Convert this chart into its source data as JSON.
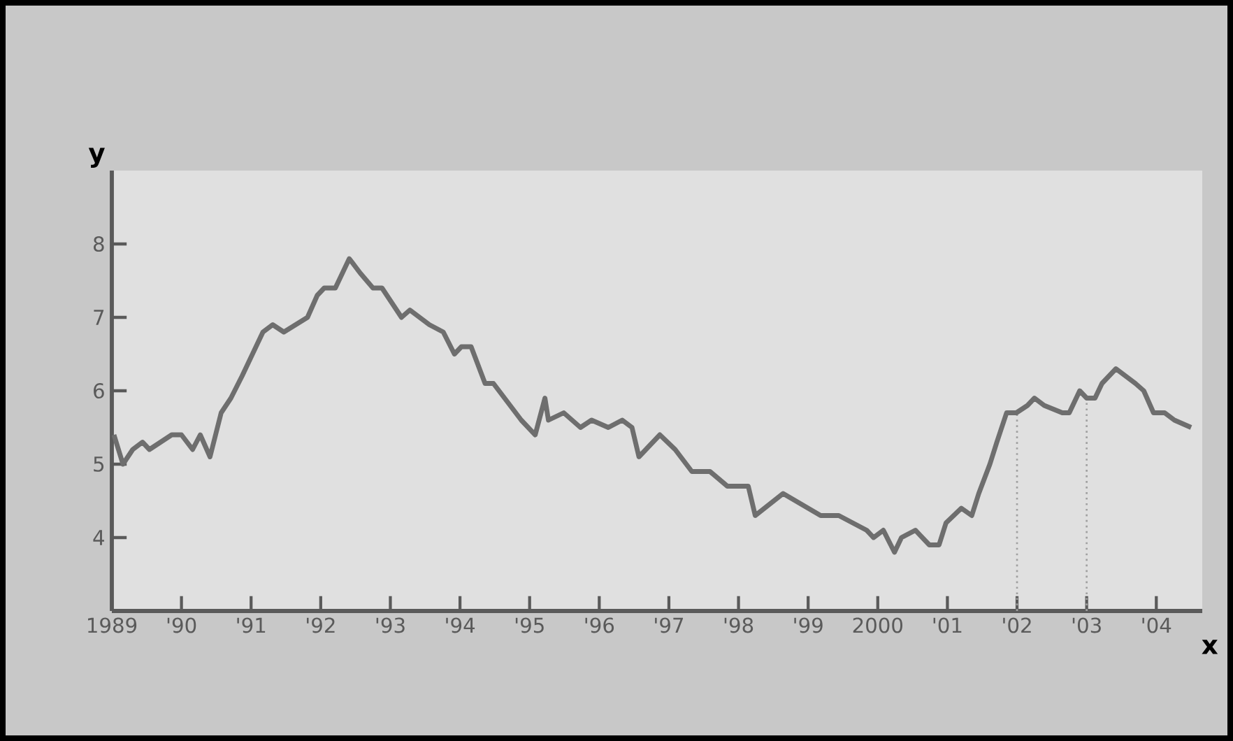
{
  "chart_data": {
    "type": "line",
    "xlabel": "x",
    "ylabel": "y",
    "xlim": [
      1989,
      2004.66
    ],
    "ylim": [
      3,
      9
    ],
    "xticks": [
      1989,
      {
        "value": 1990,
        "label": "'90"
      },
      {
        "value": 1991,
        "label": "'91"
      },
      {
        "value": 1992,
        "label": "'92"
      },
      {
        "value": 1993,
        "label": "'93"
      },
      {
        "value": 1994,
        "label": "'94"
      },
      {
        "value": 1995,
        "label": "'95"
      },
      {
        "value": 1996,
        "label": "'96"
      },
      {
        "value": 1997,
        "label": "'97"
      },
      {
        "value": 1998,
        "label": "'98"
      },
      {
        "value": 1999,
        "label": "'99"
      },
      2000,
      {
        "value": 2001,
        "label": "'01"
      },
      {
        "value": 2002,
        "label": "'02"
      },
      {
        "value": 2003,
        "label": "'03"
      },
      {
        "value": 2004,
        "label": "'04"
      }
    ],
    "yticks": [
      4,
      5,
      6,
      7,
      8
    ],
    "ref_lines": [
      {
        "axis": "x",
        "value": 2002,
        "line_style": "dotted",
        "color": "#a0a0a0"
      },
      {
        "axis": "x",
        "value": 2003,
        "line_style": "dotted",
        "color": "#a0a0a0"
      }
    ],
    "series": [
      {
        "color": "#6e6e6e",
        "x": [
          1989.03,
          1989.16,
          1989.3,
          1989.44,
          1989.54,
          1989.86,
          1990.0,
          1990.16,
          1990.27,
          1990.41,
          1990.57,
          1990.71,
          1990.87,
          1991.07,
          1991.17,
          1991.31,
          1991.47,
          1991.81,
          1991.95,
          1992.05,
          1992.21,
          1992.41,
          1992.57,
          1992.75,
          1992.88,
          1993.16,
          1993.28,
          1993.56,
          1993.76,
          1993.92,
          1994.02,
          1994.16,
          1994.36,
          1994.48,
          1994.88,
          1995.08,
          1995.22,
          1995.27,
          1995.49,
          1995.73,
          1995.89,
          1996.13,
          1996.33,
          1996.47,
          1996.57,
          1996.87,
          1997.09,
          1997.33,
          1997.59,
          1997.84,
          1998.0,
          1998.14,
          1998.24,
          1998.64,
          1999.0,
          1999.18,
          1999.44,
          1999.84,
          1999.94,
          2000.08,
          2000.24,
          2000.34,
          2000.54,
          2000.74,
          2000.88,
          2000.98,
          2001.2,
          2001.35,
          2001.45,
          2001.61,
          2001.71,
          2001.85,
          2001.99,
          2002.15,
          2002.25,
          2002.39,
          2002.65,
          2002.75,
          2002.9,
          2003.0,
          2003.12,
          2003.22,
          2003.42,
          2003.7,
          2003.82,
          2003.96,
          2004.12,
          2004.26,
          2004.5
        ],
        "values": [
          5.4,
          5.0,
          5.2,
          5.3,
          5.2,
          5.4,
          5.4,
          5.2,
          5.4,
          5.1,
          5.7,
          5.9,
          6.2,
          6.6,
          6.8,
          6.9,
          6.8,
          7.0,
          7.3,
          7.4,
          7.4,
          7.8,
          7.6,
          7.4,
          7.4,
          7.0,
          7.1,
          6.9,
          6.8,
          6.5,
          6.6,
          6.6,
          6.1,
          6.1,
          5.6,
          5.4,
          5.9,
          5.6,
          5.7,
          5.5,
          5.6,
          5.5,
          5.6,
          5.5,
          5.1,
          5.4,
          5.2,
          4.9,
          4.9,
          4.7,
          4.7,
          4.7,
          4.3,
          4.6,
          4.4,
          4.3,
          4.3,
          4.1,
          4.0,
          4.1,
          3.8,
          4.0,
          4.1,
          3.9,
          3.9,
          4.2,
          4.4,
          4.3,
          4.6,
          5.0,
          5.3,
          5.7,
          5.7,
          5.8,
          5.9,
          5.8,
          5.7,
          5.7,
          6.0,
          5.9,
          5.9,
          6.1,
          6.3,
          6.1,
          6.0,
          5.7,
          5.7,
          5.6,
          5.5
        ]
      }
    ]
  }
}
